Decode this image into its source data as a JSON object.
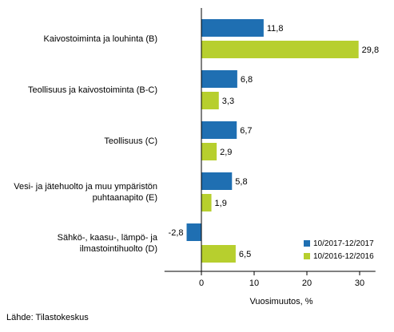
{
  "chart_data": {
    "type": "bar",
    "orientation": "horizontal",
    "categories": [
      "Kaivostoiminta ja louhinta (B)",
      "Teollisuus ja kaivostoiminta (B-C)",
      "Teollisuus (C)",
      "Vesi- ja jätehuolto ja muu ympäristön puhtaanapito (E)",
      "Sähkö-, kaasu-, lämpö- ja ilmastointihuolto (D)"
    ],
    "series": [
      {
        "name": "10/2017-12/2017",
        "color": "#1f6fb2",
        "values": [
          11.8,
          6.8,
          6.7,
          5.8,
          -2.8
        ],
        "labels": [
          "11,8",
          "6,8",
          "6,7",
          "5,8",
          "-2,8"
        ]
      },
      {
        "name": "10/2016-12/2016",
        "color": "#b7cf2e",
        "values": [
          29.8,
          3.3,
          2.9,
          1.9,
          6.5
        ],
        "labels": [
          "29,8",
          "3,3",
          "2,9",
          "1,9",
          "6,5"
        ]
      }
    ],
    "xlabel": "Vuosimuutos, %",
    "ylabel": "",
    "xlim": [
      -7,
      33
    ],
    "xticks": [
      0,
      10,
      20,
      30
    ],
    "grid": false,
    "legend_position": "bottom-right"
  },
  "source": "Lähde: Tilastokeskus"
}
